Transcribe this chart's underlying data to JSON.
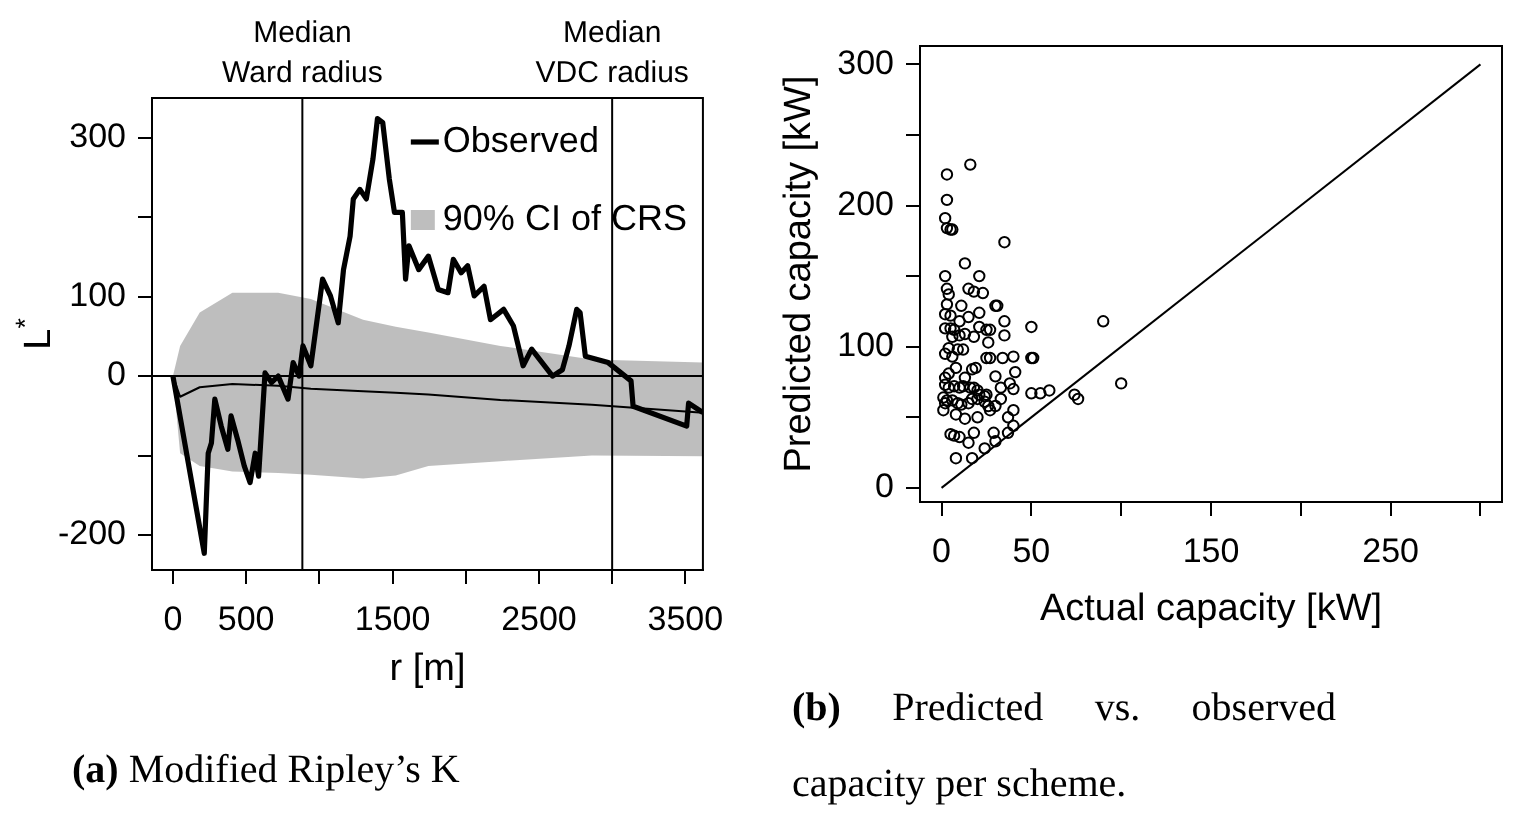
{
  "chart_data": [
    {
      "type": "line",
      "xlabel": "r [m]",
      "ylabel": "L$^{*}$",
      "xlim": [
        -143,
        3620
      ],
      "ylim": [
        -244,
        350
      ],
      "xticks": [
        0,
        500,
        {
          "value": 1000,
          "label": null
        },
        1500,
        {
          "value": 2000,
          "label": null
        },
        2500,
        {
          "value": 3000,
          "label": null
        },
        3500
      ],
      "yticks": [
        -200,
        {
          "value": -100,
          "label": null
        },
        0,
        100,
        {
          "value": 200,
          "label": null
        },
        300
      ],
      "grid": false,
      "legend": "top right",
      "ref_lines": [
        {
          "axis": "x",
          "value": 884,
          "label": "Median\nWard radius"
        },
        {
          "axis": "x",
          "value": 3000,
          "label": "Median\nVDC radius"
        },
        {
          "axis": "y",
          "value": 0
        }
      ],
      "annotations": [
        "(a) Modified Ripley’s K"
      ],
      "series": [
        {
          "name": "90% CI of CRS",
          "color": "#000000",
          "x": [
            0,
            49,
            183,
            406,
            719,
            942,
            1299,
            1522,
            1745,
            2237,
            2862,
            3620
          ],
          "values": [
            0,
            -26,
            -14,
            -10,
            -12,
            -16,
            -19,
            -21,
            -23,
            -30,
            -36,
            -46
          ],
          "lower": [
            0,
            -97,
            -113,
            -120,
            -122,
            -124,
            -129,
            -125,
            -113,
            -107,
            -100,
            -101
          ],
          "upper": [
            0,
            38,
            80,
            105,
            105,
            97,
            71,
            62,
            55,
            38,
            21,
            17
          ]
        },
        {
          "name": "Observed",
          "color": "#000000",
          "x": [
            0,
            214,
            241,
            263,
            286,
            330,
            375,
            397,
            442,
            487,
            527,
            562,
            585,
            629,
            674,
            719,
            786,
            821,
            862,
            888,
            942,
            1022,
            1076,
            1129,
            1165,
            1210,
            1232,
            1277,
            1321,
            1366,
            1397,
            1433,
            1478,
            1513,
            1567,
            1589,
            1612,
            1679,
            1745,
            1812,
            1879,
            1915,
            1969,
            2013,
            2058,
            2125,
            2169,
            2259,
            2326,
            2392,
            2450,
            2593,
            2660,
            2705,
            2758,
            2781,
            2817,
            2973,
            3129,
            3143,
            3509,
            3522,
            3620
          ],
          "values": [
            0,
            -223,
            -97,
            -84,
            -29,
            -63,
            -92,
            -50,
            -80,
            -113,
            -134,
            -97,
            -126,
            4,
            -8,
            0,
            -29,
            17,
            0,
            38,
            13,
            122,
            101,
            67,
            134,
            176,
            223,
            235,
            223,
            273,
            324,
            319,
            248,
            206,
            206,
            122,
            164,
            134,
            151,
            109,
            105,
            147,
            130,
            139,
            101,
            113,
            71,
            84,
            63,
            13,
            34,
            0,
            8,
            38,
            84,
            80,
            25,
            17,
            -6,
            -38,
            -63,
            -34,
            -46
          ]
        }
      ]
    },
    {
      "type": "scatter",
      "xlabel": "Actual capacity [kW]",
      "ylabel": "Predicted capacity [kW]",
      "xlim": [
        -12,
        312
      ],
      "ylim": [
        -10,
        313
      ],
      "xticks": [
        0,
        50,
        {
          "value": 100,
          "label": null
        },
        150,
        {
          "value": 200,
          "label": null
        },
        250,
        {
          "value": 300,
          "label": null
        }
      ],
      "yticks": [
        0,
        {
          "value": 50,
          "label": null
        },
        100,
        {
          "value": 150,
          "label": null
        },
        200,
        {
          "value": 250,
          "label": null
        },
        300
      ],
      "grid": false,
      "legend": false,
      "marker": "circle",
      "annotations": [
        "(b) Predicted vs. observed capacity per scheme."
      ],
      "series": [
        {
          "color": "#000000",
          "x": [
            3,
            16,
            3,
            2,
            3,
            5,
            6,
            35,
            13,
            2,
            21,
            3,
            4,
            15,
            18,
            23,
            3,
            11,
            30,
            31,
            2,
            5,
            15,
            21,
            10,
            35,
            2,
            5,
            7,
            21,
            25,
            27,
            50,
            90,
            6,
            10,
            13,
            18,
            26,
            35,
            4,
            9,
            12,
            2,
            6,
            27,
            25,
            34,
            40,
            50,
            51,
            8,
            17,
            19,
            2,
            4,
            13,
            30,
            41,
            38,
            2,
            4,
            7,
            10,
            12,
            16,
            18,
            20,
            21,
            24,
            25,
            33,
            40,
            50,
            55,
            60,
            74,
            76,
            100,
            1,
            2,
            3,
            6,
            9,
            11,
            15,
            17,
            20,
            24,
            26,
            30,
            33,
            1,
            8,
            13,
            20,
            27,
            37,
            40,
            40,
            37,
            5,
            7,
            10,
            15,
            18,
            29,
            30,
            24,
            8,
            17
          ],
          "values": [
            222,
            229,
            204,
            191,
            184,
            183,
            183,
            174,
            159,
            150,
            150,
            141,
            137,
            141,
            139,
            138,
            130,
            129,
            129,
            129,
            123,
            122,
            121,
            124,
            118,
            118,
            113,
            113,
            112,
            114,
            112,
            112,
            114,
            118,
            107,
            108,
            109,
            107,
            103,
            108,
            99,
            98,
            98,
            95,
            93,
            92,
            92,
            92,
            93,
            92,
            92,
            85,
            84,
            85,
            78,
            81,
            78,
            79,
            82,
            74,
            73,
            71,
            72,
            71,
            72,
            71,
            71,
            69,
            66,
            65,
            66,
            71,
            70,
            67,
            67,
            69,
            66,
            63,
            74,
            64,
            60,
            62,
            62,
            60,
            59,
            60,
            63,
            63,
            61,
            58,
            58,
            63,
            55,
            52,
            49,
            50,
            55,
            50,
            55,
            44,
            39,
            38,
            37,
            36,
            32,
            39,
            39,
            33,
            28,
            21,
            21
          ]
        },
        {
          "type": "line",
          "marker": "none",
          "color": "#000000",
          "x": [
            0,
            300
          ],
          "values": [
            0,
            300
          ]
        }
      ]
    }
  ]
}
